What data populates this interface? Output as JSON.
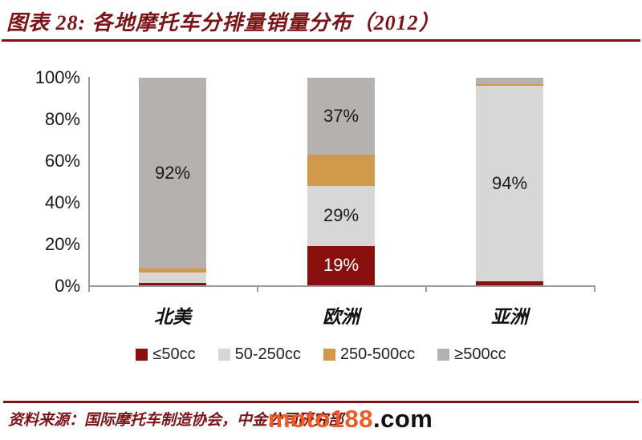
{
  "header": {
    "title": "图表 28:  各地摩托车分排量销量分布（2012）"
  },
  "colors": {
    "accent_maroon": "#7b1416",
    "axis_gray": "#9b9b9b",
    "watermark_orange": "#f05a23",
    "text_black": "#1a1a1a"
  },
  "chart_data": {
    "type": "bar",
    "stacked": true,
    "title": "各地摩托车分排量销量分布（2012）",
    "categories": [
      "北美",
      "欧洲",
      "亚洲"
    ],
    "y_ticks": [
      "100%",
      "80%",
      "60%",
      "40%",
      "20%",
      "0%"
    ],
    "ylim": [
      0,
      100
    ],
    "grid": false,
    "legend_position": "bottom",
    "series": [
      {
        "name": "≤50cc",
        "color": "#8a100f",
        "label_color": "#ffffff",
        "values": [
          1,
          19,
          2
        ],
        "labels": [
          "",
          "19%",
          ""
        ]
      },
      {
        "name": "50-250cc",
        "color": "#d8d7d5",
        "label_color": "#1a1a1a",
        "values": [
          5,
          29,
          94
        ],
        "labels": [
          "",
          "29%",
          "94%"
        ]
      },
      {
        "name": "250-500cc",
        "color": "#d09a4a",
        "label_color": "#1a1a1a",
        "values": [
          2,
          15,
          1
        ],
        "labels": [
          "",
          "",
          ""
        ]
      },
      {
        "name": "≥500cc",
        "color": "#b4b1ae",
        "label_color": "#1a1a1a",
        "values": [
          92,
          37,
          3
        ],
        "labels": [
          "92%",
          "37%",
          ""
        ]
      }
    ]
  },
  "footer": {
    "source": "资料来源：国际摩托车制造协会，中金公司研究部",
    "watermark_main": "moto188",
    "watermark_suffix": ".com"
  }
}
